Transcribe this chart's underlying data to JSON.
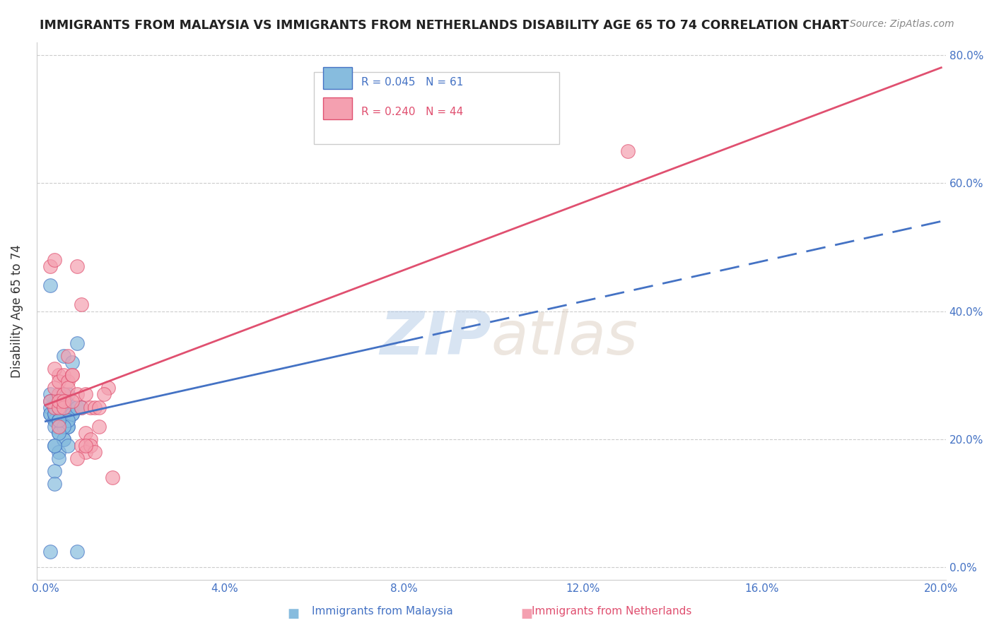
{
  "title": "IMMIGRANTS FROM MALAYSIA VS IMMIGRANTS FROM NETHERLANDS DISABILITY AGE 65 TO 74 CORRELATION CHART",
  "source": "Source: ZipAtlas.com",
  "xlabel": "",
  "ylabel": "Disability Age 65 to 74",
  "legend_malaysia": "Immigrants from Malaysia",
  "legend_netherlands": "Immigrants from Netherlands",
  "malaysia_R": 0.045,
  "malaysia_N": 61,
  "netherlands_R": 0.24,
  "netherlands_N": 44,
  "xlim": [
    0.0,
    0.2
  ],
  "ylim": [
    -0.02,
    0.82
  ],
  "yticks": [
    0.0,
    0.2,
    0.4,
    0.6,
    0.8
  ],
  "xticks": [
    0.0,
    0.04,
    0.08,
    0.12,
    0.16,
    0.2
  ],
  "color_malaysia": "#87BCDE",
  "color_netherlands": "#F4A0B0",
  "line_color_malaysia": "#4472C4",
  "line_color_netherlands": "#E05070",
  "watermark_zip": "ZIP",
  "watermark_atlas": "atlas",
  "malaysia_x": [
    0.001,
    0.002,
    0.003,
    0.001,
    0.002,
    0.004,
    0.003,
    0.001,
    0.002,
    0.003,
    0.001,
    0.002,
    0.002,
    0.003,
    0.004,
    0.005,
    0.003,
    0.002,
    0.004,
    0.003,
    0.002,
    0.001,
    0.004,
    0.005,
    0.003,
    0.002,
    0.005,
    0.004,
    0.006,
    0.005,
    0.003,
    0.002,
    0.004,
    0.003,
    0.006,
    0.005,
    0.007,
    0.004,
    0.005,
    0.003,
    0.006,
    0.004,
    0.005,
    0.003,
    0.002,
    0.004,
    0.003,
    0.001,
    0.005,
    0.006,
    0.007,
    0.005,
    0.004,
    0.003,
    0.002,
    0.008,
    0.004,
    0.003,
    0.002,
    0.001,
    0.007
  ],
  "malaysia_y": [
    0.24,
    0.26,
    0.27,
    0.25,
    0.23,
    0.24,
    0.25,
    0.24,
    0.25,
    0.26,
    0.27,
    0.24,
    0.25,
    0.23,
    0.22,
    0.25,
    0.26,
    0.23,
    0.27,
    0.25,
    0.24,
    0.26,
    0.25,
    0.24,
    0.23,
    0.22,
    0.27,
    0.33,
    0.32,
    0.25,
    0.21,
    0.19,
    0.2,
    0.18,
    0.25,
    0.23,
    0.35,
    0.25,
    0.22,
    0.25,
    0.24,
    0.2,
    0.19,
    0.17,
    0.15,
    0.24,
    0.23,
    0.44,
    0.22,
    0.24,
    0.25,
    0.23,
    0.22,
    0.21,
    0.19,
    0.25,
    0.26,
    0.23,
    0.13,
    0.025,
    0.025
  ],
  "netherlands_x": [
    0.001,
    0.002,
    0.003,
    0.002,
    0.001,
    0.003,
    0.004,
    0.002,
    0.003,
    0.004,
    0.003,
    0.002,
    0.005,
    0.004,
    0.003,
    0.004,
    0.005,
    0.003,
    0.006,
    0.007,
    0.005,
    0.004,
    0.006,
    0.007,
    0.008,
    0.006,
    0.009,
    0.01,
    0.008,
    0.009,
    0.01,
    0.009,
    0.011,
    0.012,
    0.01,
    0.011,
    0.007,
    0.008,
    0.009,
    0.012,
    0.014,
    0.013,
    0.015,
    0.13
  ],
  "netherlands_y": [
    0.47,
    0.25,
    0.3,
    0.48,
    0.26,
    0.27,
    0.26,
    0.28,
    0.25,
    0.27,
    0.29,
    0.31,
    0.33,
    0.3,
    0.26,
    0.25,
    0.29,
    0.22,
    0.3,
    0.47,
    0.28,
    0.26,
    0.3,
    0.27,
    0.25,
    0.26,
    0.27,
    0.25,
    0.19,
    0.21,
    0.2,
    0.18,
    0.25,
    0.25,
    0.19,
    0.18,
    0.17,
    0.41,
    0.19,
    0.22,
    0.28,
    0.27,
    0.14,
    0.65
  ]
}
